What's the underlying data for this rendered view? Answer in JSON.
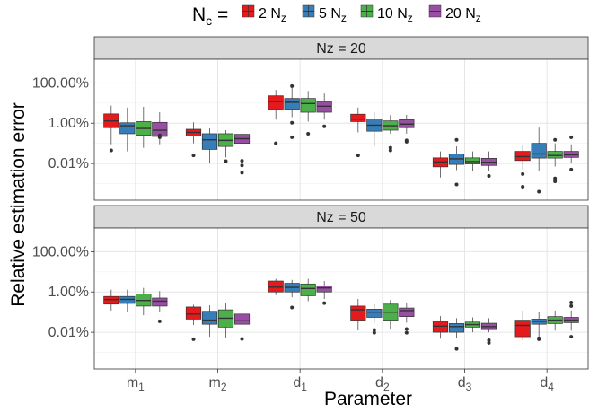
{
  "legend": {
    "title": "N",
    "title_sub": "c",
    "title_suffix": " =",
    "entries": [
      {
        "pre": "2 N",
        "sub": "z",
        "color": "#E41A1C"
      },
      {
        "pre": "5 N",
        "sub": "z",
        "color": "#377EB8"
      },
      {
        "pre": "10 N",
        "sub": "z",
        "color": "#4DAF4A"
      },
      {
        "pre": "20 N",
        "sub": "z",
        "color": "#984EA3"
      }
    ]
  },
  "chart_data": {
    "type": "box",
    "xlabel": "Parameter",
    "ylabel": "Relative estimation error",
    "y_scale": "log10",
    "y_ticks": [
      0.01,
      1,
      100
    ],
    "y_tick_labels": [
      "0.01%",
      "1.00%",
      "100.00%"
    ],
    "y_range": [
      0.00015,
      1500
    ],
    "categories": [
      {
        "base": "m",
        "sub": "1"
      },
      {
        "base": "m",
        "sub": "2"
      },
      {
        "base": "d",
        "sub": "1"
      },
      {
        "base": "d",
        "sub": "2"
      },
      {
        "base": "d",
        "sub": "3"
      },
      {
        "base": "d",
        "sub": "4"
      }
    ],
    "series_names": [
      "2 Nz",
      "5 Nz",
      "10 Nz",
      "20 Nz"
    ],
    "panels": [
      {
        "strip": "Nz = 20",
        "boxes": [
          [
            {
              "q1": 0.6,
              "median": 1.3,
              "q3": 2.9,
              "whisker_low": 0.09,
              "whisker_high": 7.5,
              "outliers": [
                0.045
              ]
            },
            {
              "q1": 0.3,
              "median": 0.75,
              "q3": 1.05,
              "whisker_low": 0.04,
              "whisker_high": 6,
              "outliers": []
            },
            {
              "q1": 0.25,
              "median": 0.55,
              "q3": 1.2,
              "whisker_low": 0.06,
              "whisker_high": 6.5,
              "outliers": []
            },
            {
              "q1": 0.22,
              "median": 0.45,
              "q3": 1.1,
              "whisker_low": 0.09,
              "whisker_high": 3.5,
              "outliers": [
                0.2,
                0.25
              ]
            }
          ],
          [
            {
              "q1": 0.23,
              "median": 0.35,
              "q3": 0.5,
              "whisker_low": 0.1,
              "whisker_high": 1.1,
              "outliers": [
                0.025
              ]
            },
            {
              "q1": 0.05,
              "median": 0.15,
              "q3": 0.3,
              "whisker_low": 0.01,
              "whisker_high": 0.55,
              "outliers": []
            },
            {
              "q1": 0.07,
              "median": 0.14,
              "q3": 0.3,
              "whisker_low": 0.02,
              "whisker_high": 0.45,
              "outliers": [
                0.013
              ]
            },
            {
              "q1": 0.1,
              "median": 0.17,
              "q3": 0.28,
              "whisker_low": 0.06,
              "whisker_high": 0.5,
              "outliers": [
                0.0135,
                0.008,
                0.0035
              ]
            }
          ],
          [
            {
              "q1": 5,
              "median": 12,
              "q3": 23,
              "whisker_low": 1.5,
              "whisker_high": 45,
              "outliers": [
                0.1
              ]
            },
            {
              "q1": 5,
              "median": 11,
              "q3": 17,
              "whisker_low": 2,
              "whisker_high": 60,
              "outliers": [
                1.05,
                0.2,
                70
              ]
            },
            {
              "q1": 3.5,
              "median": 9.5,
              "q3": 17,
              "whisker_low": 1.2,
              "whisker_high": 40,
              "outliers": [
                0.3
              ]
            },
            {
              "q1": 3.5,
              "median": 7,
              "q3": 12,
              "whisker_low": 1.5,
              "whisker_high": 30,
              "outliers": [
                0.7
              ]
            }
          ],
          [
            {
              "q1": 1.2,
              "median": 1.6,
              "q3": 2.8,
              "whisker_low": 0.35,
              "whisker_high": 6,
              "outliers": [
                0.025
              ]
            },
            {
              "q1": 0.4,
              "median": 0.8,
              "q3": 1.6,
              "whisker_low": 0.07,
              "whisker_high": 3.5,
              "outliers": []
            },
            {
              "q1": 0.45,
              "median": 0.75,
              "q3": 1.3,
              "whisker_low": 0.3,
              "whisker_high": 2.5,
              "outliers": [
                0.045,
                0.06
              ]
            },
            {
              "q1": 0.6,
              "median": 0.9,
              "q3": 1.5,
              "whisker_low": 0.3,
              "whisker_high": 2.6,
              "outliers": [
                0.12,
                0.14
              ]
            }
          ],
          [
            {
              "q1": 0.0068,
              "median": 0.012,
              "q3": 0.019,
              "whisker_low": 0.002,
              "whisker_high": 0.04,
              "outliers": []
            },
            {
              "q1": 0.009,
              "median": 0.017,
              "q3": 0.03,
              "whisker_low": 0.0047,
              "whisker_high": 0.07,
              "outliers": [
                0.0009,
                0.15
              ]
            },
            {
              "q1": 0.0095,
              "median": 0.0125,
              "q3": 0.019,
              "whisker_low": 0.004,
              "whisker_high": 0.04,
              "outliers": []
            },
            {
              "q1": 0.008,
              "median": 0.0115,
              "q3": 0.018,
              "whisker_low": 0.004,
              "whisker_high": 0.04,
              "outliers": [
                0.0024
              ]
            }
          ],
          [
            {
              "q1": 0.014,
              "median": 0.022,
              "q3": 0.04,
              "whisker_low": 0.005,
              "whisker_high": 0.08,
              "outliers": [
                0.003,
                0.0007
              ]
            },
            {
              "q1": 0.0185,
              "median": 0.03,
              "q3": 0.1,
              "whisker_low": 0.004,
              "whisker_high": 0.6,
              "outliers": [
                0.0004
              ]
            },
            {
              "q1": 0.0185,
              "median": 0.025,
              "q3": 0.04,
              "whisker_low": 0.007,
              "whisker_high": 0.1,
              "outliers": [
                0.0018,
                0.0013,
                0.15
              ]
            },
            {
              "q1": 0.02,
              "median": 0.027,
              "q3": 0.04,
              "whisker_low": 0.01,
              "whisker_high": 0.09,
              "outliers": [
                0.005,
                0.2
              ]
            }
          ]
        ]
      },
      {
        "strip": "Nz = 50",
        "boxes": [
          [
            {
              "q1": 0.25,
              "median": 0.42,
              "q3": 0.6,
              "whisker_low": 0.12,
              "whisker_high": 1.3,
              "outliers": []
            },
            {
              "q1": 0.27,
              "median": 0.43,
              "q3": 0.6,
              "whisker_low": 0.1,
              "whisker_high": 1.3,
              "outliers": []
            },
            {
              "q1": 0.2,
              "median": 0.38,
              "q3": 0.8,
              "whisker_low": 0.07,
              "whisker_high": 1.6,
              "outliers": []
            },
            {
              "q1": 0.2,
              "median": 0.35,
              "q3": 0.5,
              "whisker_low": 0.1,
              "whisker_high": 1.1,
              "outliers": [
                0.035
              ]
            }
          ],
          [
            {
              "q1": 0.045,
              "median": 0.08,
              "q3": 0.18,
              "whisker_low": 0.023,
              "whisker_high": 0.23,
              "outliers": [
                0.0045
              ]
            },
            {
              "q1": 0.025,
              "median": 0.04,
              "q3": 0.11,
              "whisker_low": 0.006,
              "whisker_high": 0.22,
              "outliers": []
            },
            {
              "q1": 0.018,
              "median": 0.05,
              "q3": 0.13,
              "whisker_low": 0.0055,
              "whisker_high": 0.3,
              "outliers": []
            },
            {
              "q1": 0.025,
              "median": 0.037,
              "q3": 0.08,
              "whisker_low": 0.005,
              "whisker_high": 0.17,
              "outliers": [
                0.0047
              ]
            }
          ],
          [
            {
              "q1": 1,
              "median": 1.75,
              "q3": 3.5,
              "whisker_low": 0.7,
              "whisker_high": 4.5,
              "outliers": []
            },
            {
              "q1": 1,
              "median": 1.7,
              "q3": 2.7,
              "whisker_low": 0.55,
              "whisker_high": 4,
              "outliers": [
                0.17
              ]
            },
            {
              "q1": 0.65,
              "median": 1.5,
              "q3": 2.5,
              "whisker_low": 0.35,
              "whisker_high": 4.5,
              "outliers": []
            },
            {
              "q1": 1,
              "median": 1.6,
              "q3": 2,
              "whisker_low": 0.45,
              "whisker_high": 3.5,
              "outliers": [
                0.28
              ]
            }
          ],
          [
            {
              "q1": 0.04,
              "median": 0.13,
              "q3": 0.2,
              "whisker_low": 0.013,
              "whisker_high": 0.45,
              "outliers": []
            },
            {
              "q1": 0.055,
              "median": 0.1,
              "q3": 0.14,
              "whisker_low": 0.03,
              "whisker_high": 0.25,
              "outliers": [
                0.013,
                0.0095
              ]
            },
            {
              "q1": 0.04,
              "median": 0.1,
              "q3": 0.25,
              "whisker_low": 0.015,
              "whisker_high": 0.4,
              "outliers": []
            },
            {
              "q1": 0.06,
              "median": 0.12,
              "q3": 0.16,
              "whisker_low": 0.03,
              "whisker_high": 0.3,
              "outliers": [
                0.0145,
                0.0095
              ]
            }
          ],
          [
            {
              "q1": 0.01,
              "median": 0.02,
              "q3": 0.035,
              "whisker_low": 0.0048,
              "whisker_high": 0.063,
              "outliers": []
            },
            {
              "q1": 0.01,
              "median": 0.019,
              "q3": 0.027,
              "whisker_low": 0.005,
              "whisker_high": 0.05,
              "outliers": [
                0.0015
              ]
            },
            {
              "q1": 0.018,
              "median": 0.024,
              "q3": 0.032,
              "whisker_low": 0.01,
              "whisker_high": 0.055,
              "outliers": []
            },
            {
              "q1": 0.015,
              "median": 0.019,
              "q3": 0.028,
              "whisker_low": 0.01,
              "whisker_high": 0.05,
              "outliers": [
                0.004,
                0.003
              ]
            }
          ],
          [
            {
              "q1": 0.006,
              "median": 0.022,
              "q3": 0.04,
              "whisker_low": 0.004,
              "whisker_high": 0.12,
              "outliers": []
            },
            {
              "q1": 0.025,
              "median": 0.035,
              "q3": 0.045,
              "whisker_low": 0.006,
              "whisker_high": 0.1,
              "outliers": [
                0.005,
                0.0045
              ]
            },
            {
              "q1": 0.027,
              "median": 0.04,
              "q3": 0.06,
              "whisker_low": 0.012,
              "whisker_high": 0.12,
              "outliers": []
            },
            {
              "q1": 0.03,
              "median": 0.04,
              "q3": 0.055,
              "whisker_low": 0.012,
              "whisker_high": 0.12,
              "outliers": [
                0.006,
                0.3,
                0.2
              ]
            }
          ]
        ]
      }
    ]
  }
}
